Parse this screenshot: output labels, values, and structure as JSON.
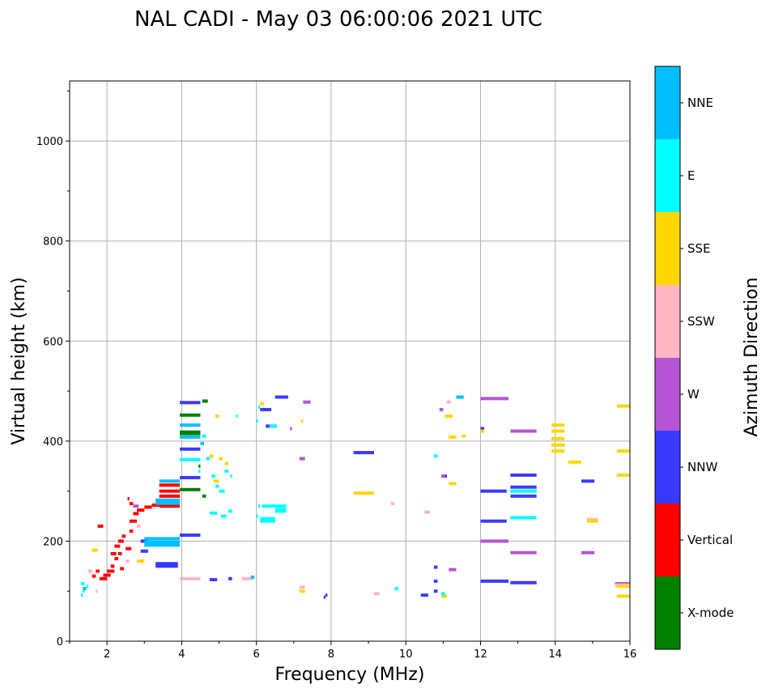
{
  "chart_data": {
    "type": "scatter",
    "title": "NAL CADI - May 03 06:00:06 2021 UTC",
    "xlabel": "Frequency (MHz)",
    "ylabel": "Virtual height (km)",
    "xlim": [
      1.0,
      16.0
    ],
    "ylim": [
      0,
      1120
    ],
    "xticks": [
      2,
      4,
      6,
      8,
      10,
      12,
      14,
      16
    ],
    "yticks": [
      0,
      200,
      400,
      600,
      800,
      1000
    ],
    "grid": true,
    "colorbar": {
      "label": "Azimuth Direction",
      "categories": [
        "X-mode",
        "Vertical",
        "NNW",
        "W",
        "SSW",
        "SSE",
        "E",
        "NNE"
      ],
      "colors": [
        "#008000",
        "#ff0000",
        "#3a3aff",
        "#b455d6",
        "#ffb6c1",
        "#ffd700",
        "#00ffff",
        "#00bfff"
      ]
    },
    "series": [
      {
        "name": "Vertical",
        "color": "#ff0000",
        "points": [
          [
            1.6,
            130,
            1.7
          ],
          [
            1.7,
            140,
            1.8
          ],
          [
            1.8,
            125,
            2.0
          ],
          [
            1.9,
            132,
            2.1
          ],
          [
            2.0,
            140,
            2.2
          ],
          [
            2.1,
            150,
            2.2
          ],
          [
            2.2,
            165,
            2.3
          ],
          [
            2.3,
            175,
            2.4
          ],
          [
            2.2,
            190,
            2.35
          ],
          [
            2.3,
            200,
            2.45
          ],
          [
            2.4,
            210,
            2.5
          ],
          [
            2.5,
            185,
            2.65
          ],
          [
            2.6,
            220,
            2.7
          ],
          [
            2.6,
            240,
            2.8
          ],
          [
            2.7,
            255,
            2.85
          ],
          [
            2.8,
            262,
            3.0
          ],
          [
            2.6,
            275,
            2.7
          ],
          [
            2.55,
            285,
            2.6
          ],
          [
            3.0,
            268,
            3.2
          ],
          [
            3.2,
            272,
            3.4
          ],
          [
            3.4,
            312,
            3.95
          ],
          [
            3.4,
            300,
            3.95
          ],
          [
            3.4,
            290,
            3.95
          ],
          [
            3.4,
            270,
            3.95
          ],
          [
            2.1,
            175,
            2.25
          ],
          [
            2.35,
            145,
            2.45
          ],
          [
            1.75,
            230,
            1.9
          ]
        ]
      },
      {
        "name": "X-mode",
        "color": "#008000",
        "points": [
          [
            3.95,
            452,
            4.5
          ],
          [
            3.95,
            418,
            4.5
          ],
          [
            3.95,
            415,
            4.5
          ],
          [
            3.95,
            303,
            4.5
          ],
          [
            4.55,
            480,
            4.7
          ],
          [
            4.55,
            290,
            4.65
          ],
          [
            4.45,
            350,
            4.5
          ]
        ]
      },
      {
        "name": "NNW",
        "color": "#3a3aff",
        "points": [
          [
            3.95,
            477,
            4.5
          ],
          [
            3.95,
            384,
            4.5
          ],
          [
            3.95,
            327,
            4.5
          ],
          [
            3.95,
            212,
            4.5
          ],
          [
            3.3,
            155,
            3.9
          ],
          [
            3.3,
            150,
            3.9
          ],
          [
            2.9,
            200,
            3.1
          ],
          [
            2.9,
            180,
            3.1
          ],
          [
            4.75,
            123,
            4.95
          ],
          [
            5.25,
            125,
            5.35
          ],
          [
            6.1,
            463,
            6.4
          ],
          [
            6.25,
            430,
            6.55
          ],
          [
            6.5,
            488,
            6.85
          ],
          [
            8.6,
            377,
            9.15
          ],
          [
            7.85,
            92,
            7.9
          ],
          [
            7.8,
            88,
            7.85
          ],
          [
            10.4,
            92,
            10.6
          ],
          [
            10.75,
            120,
            10.85
          ],
          [
            10.75,
            100,
            10.85
          ],
          [
            10.75,
            148,
            10.85
          ],
          [
            12.0,
            300,
            12.7
          ],
          [
            12.0,
            240,
            12.7
          ],
          [
            12.0,
            120,
            12.75
          ],
          [
            12.0,
            425,
            12.1
          ],
          [
            12.8,
            332,
            13.5
          ],
          [
            12.8,
            308,
            13.5
          ],
          [
            12.8,
            290,
            13.5
          ],
          [
            12.8,
            117,
            13.5
          ],
          [
            14.7,
            320,
            15.05
          ],
          [
            11.0,
            330,
            11.1
          ]
        ]
      },
      {
        "name": "W",
        "color": "#b455d6",
        "points": [
          [
            12.0,
            485,
            12.75
          ],
          [
            12.8,
            420,
            13.5
          ],
          [
            12.8,
            177,
            13.5
          ],
          [
            14.7,
            177,
            15.05
          ],
          [
            15.6,
            115,
            16.0
          ],
          [
            10.95,
            330,
            11.05
          ],
          [
            11.15,
            143,
            11.35
          ],
          [
            7.15,
            365,
            7.3
          ],
          [
            7.25,
            478,
            7.45
          ],
          [
            6.9,
            425,
            6.95
          ],
          [
            2.7,
            270,
            2.85
          ],
          [
            10.9,
            463,
            11.0
          ],
          [
            12.0,
            200,
            12.75
          ]
        ]
      },
      {
        "name": "SSW",
        "color": "#ffb6c1",
        "points": [
          [
            3.95,
            125,
            4.5
          ],
          [
            5.6,
            125,
            5.9
          ],
          [
            10.5,
            258,
            10.65
          ],
          [
            11.1,
            478,
            11.2
          ],
          [
            9.15,
            95,
            9.3
          ],
          [
            9.6,
            275,
            9.7
          ],
          [
            7.15,
            108,
            7.3
          ],
          [
            2.5,
            160,
            2.6
          ],
          [
            1.5,
            140,
            1.6
          ],
          [
            1.7,
            100,
            1.75
          ],
          [
            2.8,
            230,
            2.9
          ],
          [
            14.85,
            243,
            15.15
          ],
          [
            15.6,
            112,
            16.0
          ]
        ]
      },
      {
        "name": "SSE",
        "color": "#ffd700",
        "points": [
          [
            8.6,
            296,
            9.15
          ],
          [
            13.9,
            432,
            14.25
          ],
          [
            13.9,
            420,
            14.25
          ],
          [
            13.9,
            405,
            14.25
          ],
          [
            13.9,
            392,
            14.25
          ],
          [
            13.9,
            380,
            14.25
          ],
          [
            14.35,
            358,
            14.7
          ],
          [
            15.65,
            470,
            16.0
          ],
          [
            15.65,
            380,
            16.0
          ],
          [
            15.65,
            332,
            16.0
          ],
          [
            15.65,
            90,
            16.0
          ],
          [
            15.65,
            110,
            16.0
          ],
          [
            11.15,
            408,
            11.35
          ],
          [
            11.15,
            315,
            11.35
          ],
          [
            11.05,
            450,
            11.25
          ],
          [
            11.5,
            410,
            11.6
          ],
          [
            12.0,
            420,
            12.1
          ],
          [
            14.85,
            240,
            15.15
          ],
          [
            7.15,
            100,
            7.3
          ],
          [
            10.95,
            90,
            11.1
          ],
          [
            4.9,
            450,
            5.0
          ],
          [
            4.75,
            370,
            4.85
          ],
          [
            5.0,
            365,
            5.1
          ],
          [
            5.15,
            355,
            5.25
          ],
          [
            4.85,
            320,
            5.0
          ],
          [
            2.8,
            160,
            3.0
          ],
          [
            1.6,
            182,
            1.75
          ],
          [
            7.2,
            440,
            7.25
          ],
          [
            6.1,
            475,
            6.2
          ]
        ]
      },
      {
        "name": "E",
        "color": "#00ffff",
        "points": [
          [
            3.95,
            363,
            4.5
          ],
          [
            4.45,
            340,
            4.5
          ],
          [
            4.55,
            410,
            4.65
          ],
          [
            4.65,
            365,
            4.75
          ],
          [
            4.8,
            330,
            4.9
          ],
          [
            4.9,
            310,
            5.0
          ],
          [
            5.0,
            300,
            5.15
          ],
          [
            5.15,
            340,
            5.25
          ],
          [
            5.3,
            330,
            5.35
          ],
          [
            4.75,
            256,
            4.95
          ],
          [
            5.05,
            250,
            5.2
          ],
          [
            5.25,
            260,
            5.35
          ],
          [
            6.0,
            250,
            6.05
          ],
          [
            6.05,
            270,
            6.1
          ],
          [
            6.1,
            245,
            6.5
          ],
          [
            6.1,
            240,
            6.5
          ],
          [
            6.15,
            270,
            6.8
          ],
          [
            6.5,
            263,
            6.8
          ],
          [
            6.5,
            260,
            6.8
          ],
          [
            6.35,
            430,
            6.55
          ],
          [
            6.0,
            440,
            6.05
          ],
          [
            6.05,
            468,
            6.1
          ],
          [
            9.7,
            105,
            9.8
          ],
          [
            10.75,
            370,
            10.85
          ],
          [
            12.8,
            300,
            13.5
          ],
          [
            12.8,
            247,
            13.5
          ],
          [
            1.3,
            115,
            1.4
          ],
          [
            1.35,
            100,
            1.4
          ],
          [
            1.3,
            92,
            1.35
          ],
          [
            1.45,
            110,
            1.5
          ],
          [
            5.45,
            450,
            5.5
          ],
          [
            10.95,
            95,
            11.05
          ]
        ]
      },
      {
        "name": "NNE",
        "color": "#00bfff",
        "points": [
          [
            3.0,
            205,
            3.95
          ],
          [
            3.0,
            198,
            3.95
          ],
          [
            3.0,
            192,
            3.95
          ],
          [
            3.95,
            432,
            4.5
          ],
          [
            3.95,
            408,
            4.5
          ],
          [
            4.5,
            395,
            4.6
          ],
          [
            3.3,
            276,
            3.95
          ],
          [
            3.3,
            282,
            3.95
          ],
          [
            11.35,
            488,
            11.55
          ],
          [
            5.85,
            128,
            5.95
          ],
          [
            1.35,
            105,
            1.45
          ],
          [
            3.4,
            320,
            3.95
          ]
        ]
      }
    ]
  }
}
